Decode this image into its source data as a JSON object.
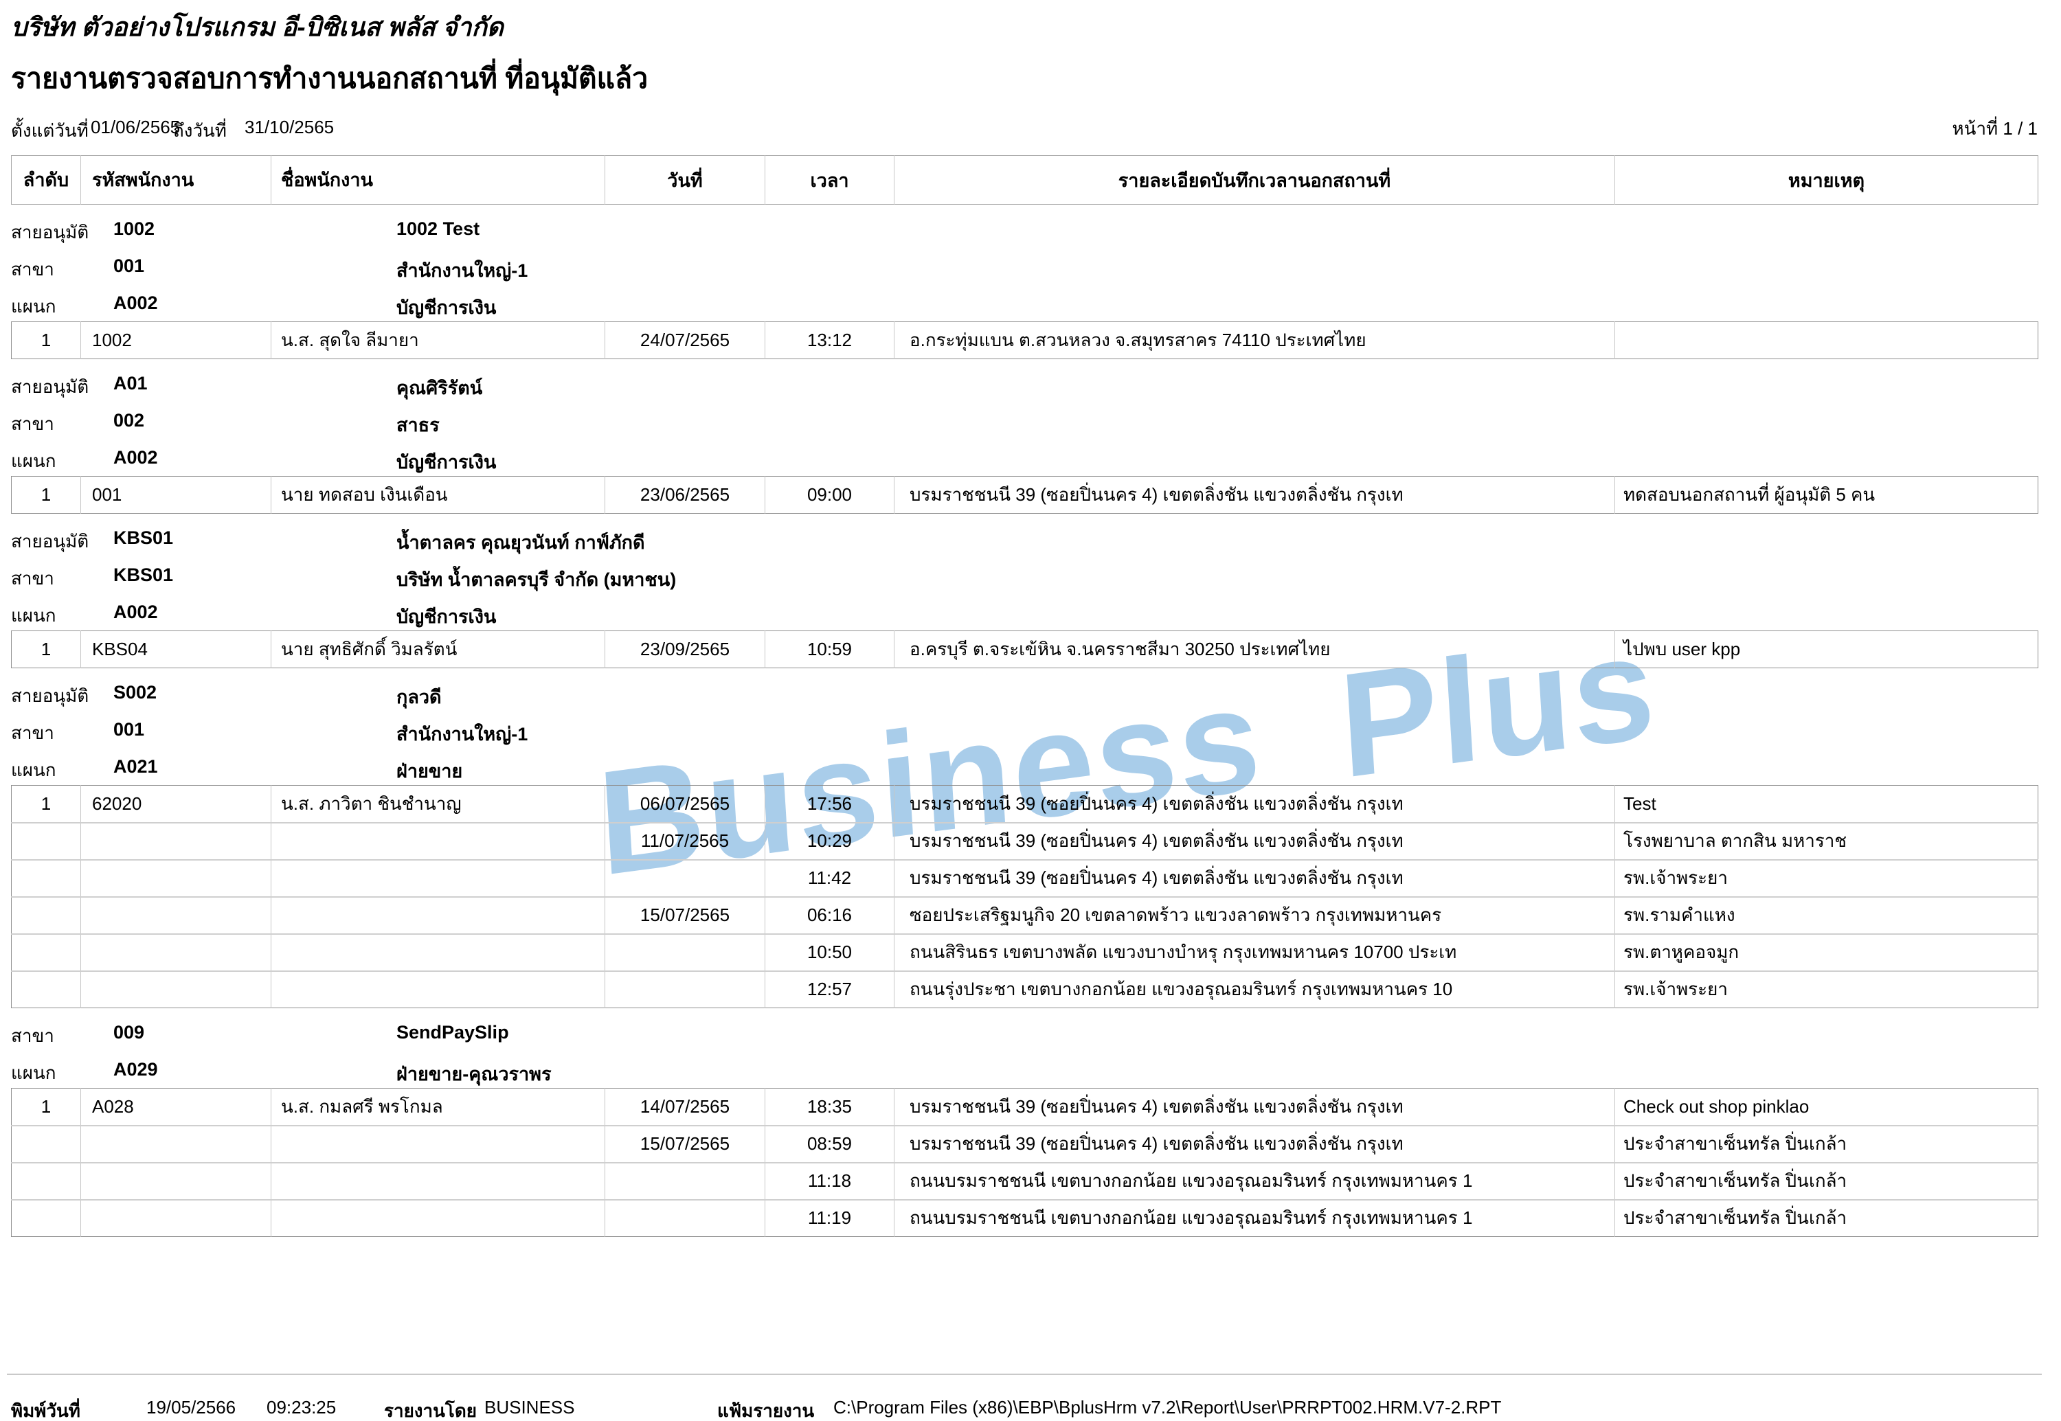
{
  "header": {
    "company": "บริษัท ตัวอย่างโปรแกรม อี-บิซิเนส พลัส  จำกัด",
    "report_title": "รายงานตรวจสอบการทำงานนอกสถานที่ ที่อนุมัติแล้ว",
    "date_from_label": "ตั้งแต่วันที่",
    "date_from": "01/06/2565",
    "date_to_label": "ถึงวันที่",
    "date_to": "31/10/2565",
    "page_label": "หน้าที่ 1 / 1"
  },
  "watermark": {
    "text": "Business Plus",
    "color": "#a9cdea"
  },
  "table": {
    "columns": [
      "ลำดับ",
      "รหัสพนักงาน",
      "ชื่อพนักงาน",
      "วันที่",
      "เวลา",
      "รายละเอียดบันทึกเวลานอกสถานที่",
      "หมายเหตุ"
    ]
  },
  "groups": [
    {
      "labels": [
        {
          "label": "สายอนุมัติ",
          "code": "1002",
          "name": "1002 Test"
        },
        {
          "label": "สาขา",
          "code": "001",
          "name": "สำนักงานใหญ่-1"
        },
        {
          "label": "แผนก",
          "code": "A002",
          "name": "บัญชีการเงิน"
        }
      ],
      "rows": [
        {
          "seq": "1",
          "code": "1002",
          "name": "น.ส. สุดใจ  ลีมายา",
          "entries": [
            {
              "date": "24/07/2565",
              "time": "13:12",
              "detail": "อ.กระทุ่มแบน ต.สวนหลวง จ.สมุทรสาคร 74110 ประเทศไทย",
              "note": ""
            }
          ]
        }
      ]
    },
    {
      "labels": [
        {
          "label": "สายอนุมัติ",
          "code": "A01",
          "name": "คุณศิริรัตน์"
        },
        {
          "label": "สาขา",
          "code": "002",
          "name": "สาธร"
        },
        {
          "label": "แผนก",
          "code": "A002",
          "name": "บัญชีการเงิน"
        }
      ],
      "rows": [
        {
          "seq": "1",
          "code": "001",
          "name": "นาย ทดสอบ  เงินเดือน",
          "entries": [
            {
              "date": "23/06/2565",
              "time": "09:00",
              "detail": "บรมราชชนนี 39 (ซอยปิ่นนคร 4) เขตตลิ่งชัน แขวงตลิ่งชัน กรุงเท",
              "note": "ทดสอบนอกสถานที่ ผู้อนุมัติ 5 คน"
            }
          ]
        }
      ]
    },
    {
      "labels": [
        {
          "label": "สายอนุมัติ",
          "code": "KBS01",
          "name": "น้ำตาลคร คุณยุวนันท์ กาฟ์ภักดี"
        },
        {
          "label": "สาขา",
          "code": "KBS01",
          "name": "บริษัท น้ำตาลครบุรี จำกัด (มหาชน)"
        },
        {
          "label": "แผนก",
          "code": "A002",
          "name": "บัญชีการเงิน"
        }
      ],
      "rows": [
        {
          "seq": "1",
          "code": "KBS04",
          "name": "นาย สุทธิศักดิ์  วิมลรัตน์",
          "entries": [
            {
              "date": "23/09/2565",
              "time": "10:59",
              "detail": "อ.ครบุรี ต.จระเข้หิน จ.นครราชสีมา 30250 ประเทศไทย",
              "note": "ไปพบ user kpp"
            }
          ]
        }
      ]
    },
    {
      "labels": [
        {
          "label": "สายอนุมัติ",
          "code": "S002",
          "name": "กุลวดี"
        },
        {
          "label": "สาขา",
          "code": "001",
          "name": "สำนักงานใหญ่-1"
        },
        {
          "label": "แผนก",
          "code": "A021",
          "name": "ฝ่ายขาย"
        }
      ],
      "rows": [
        {
          "seq": "1",
          "code": "62020",
          "name": "น.ส. ภาวิตา  ชินชำนาญ",
          "entries": [
            {
              "date": "06/07/2565",
              "time": "17:56",
              "detail": "บรมราชชนนี 39 (ซอยปิ่นนคร 4) เขตตลิ่งชัน แขวงตลิ่งชัน กรุงเท",
              "note": "Test"
            },
            {
              "date": "11/07/2565",
              "time": "10:29",
              "detail": "บรมราชชนนี 39 (ซอยปิ่นนคร 4) เขตตลิ่งชัน แขวงตลิ่งชัน กรุงเท",
              "note": "โรงพยาบาล ตากสิน มหาราช"
            },
            {
              "date": "",
              "time": "11:42",
              "detail": "บรมราชชนนี 39 (ซอยปิ่นนคร 4) เขตตลิ่งชัน แขวงตลิ่งชัน กรุงเท",
              "note": "รพ.เจ้าพระยา"
            },
            {
              "date": "15/07/2565",
              "time": "06:16",
              "detail": "ซอยประเสริฐมนูกิจ 20 เขตลาดพร้าว แขวงลาดพร้าว กรุงเทพมหานคร",
              "note": "รพ.รามคำแหง"
            },
            {
              "date": "",
              "time": "10:50",
              "detail": "ถนนสิรินธร เขตบางพลัด แขวงบางบำหรุ กรุงเทพมหานคร 10700 ประเท",
              "note": "รพ.ตาหูคอจมูก"
            },
            {
              "date": "",
              "time": "12:57",
              "detail": "ถนนรุ่งประชา เขตบางกอกน้อย แขวงอรุณอมรินทร์ กรุงเทพมหานคร 10",
              "note": "รพ.เจ้าพระยา"
            }
          ]
        }
      ]
    },
    {
      "labels": [
        {
          "label": "สาขา",
          "code": "009",
          "name": "SendPaySlip"
        },
        {
          "label": "แผนก",
          "code": "A029",
          "name": "ฝ่ายขาย-คุณวราพร"
        }
      ],
      "rows": [
        {
          "seq": "1",
          "code": "A028",
          "name": "น.ส. กมลศรี  พรโกมล",
          "entries": [
            {
              "date": "14/07/2565",
              "time": "18:35",
              "detail": "บรมราชชนนี 39 (ซอยปิ่นนคร 4) เขตตลิ่งชัน แขวงตลิ่งชัน กรุงเท",
              "note": "Check out shop pinklao"
            },
            {
              "date": "15/07/2565",
              "time": "08:59",
              "detail": "บรมราชชนนี 39 (ซอยปิ่นนคร 4) เขตตลิ่งชัน แขวงตลิ่งชัน กรุงเท",
              "note": "ประจำสาขาเซ็นทรัล ปิ่นเกล้า"
            },
            {
              "date": "",
              "time": "11:18",
              "detail": "ถนนบรมราชชนนี เขตบางกอกน้อย แขวงอรุณอมรินทร์ กรุงเทพมหานคร 1",
              "note": "ประจำสาขาเซ็นทรัล ปิ่นเกล้า"
            },
            {
              "date": "",
              "time": "11:19",
              "detail": "ถนนบรมราชชนนี เขตบางกอกน้อย แขวงอรุณอมรินทร์ กรุงเทพมหานคร 1",
              "note": "ประจำสาขาเซ็นทรัล ปิ่นเกล้า"
            }
          ]
        }
      ]
    }
  ],
  "footer": {
    "print_label": "พิมพ์วันที่",
    "print_date": "19/05/2566",
    "print_time": "09:23:25",
    "by_label": "รายงานโดย",
    "by_value": "BUSINESS",
    "file_label": "แฟ้มรายงาน",
    "file_value": "C:\\Program Files (x86)\\EBP\\BplusHrm v7.2\\Report\\User\\PRRPT002.HRM.V7-2.RPT"
  }
}
